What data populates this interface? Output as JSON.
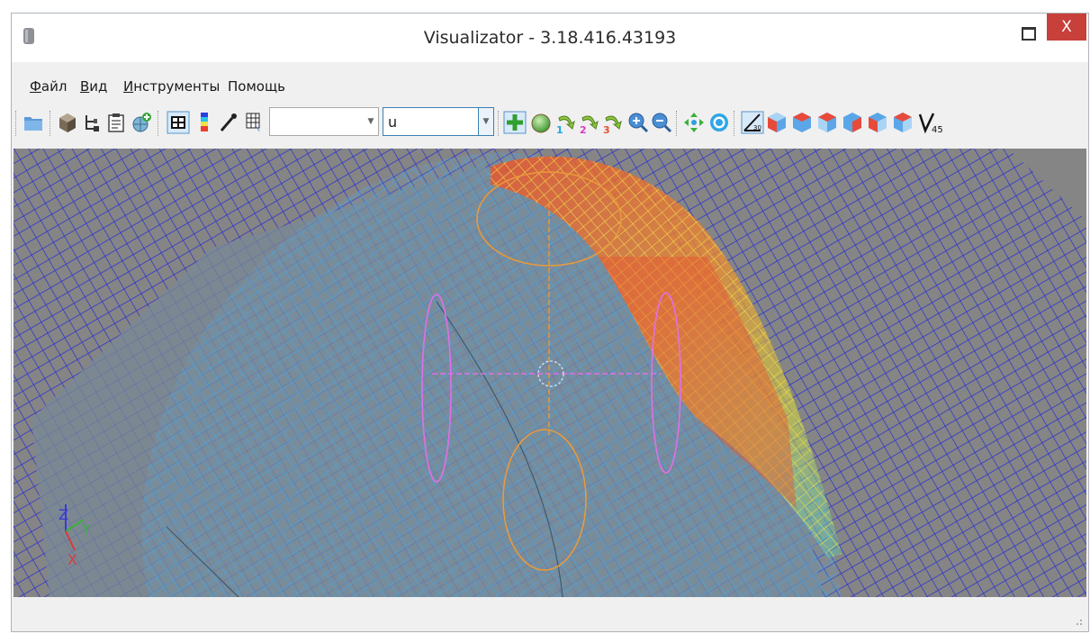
{
  "window": {
    "title": "Visualizator - 3.18.416.43193",
    "close_label": "X"
  },
  "menu": [
    {
      "key": "Ф",
      "rest": "айл"
    },
    {
      "key": "В",
      "rest": "ид"
    },
    {
      "key": "И",
      "rest": "нструменты"
    },
    {
      "key": "",
      "rest": "Помощь"
    }
  ],
  "toolbar": {
    "combo1_value": "",
    "combo2_value": "u",
    "axis_labels": [
      "1",
      "2",
      "3"
    ],
    "angle_label_30": "30",
    "angle_label_45": "45",
    "icons": [
      "open-folder-icon",
      "cube-icon",
      "tree-icon",
      "clipboard-icon",
      "globe-add-icon",
      "grid-icon",
      "color-scale-icon",
      "eyedropper-icon",
      "grid-select-icon",
      "crosshair-icon",
      "sphere-icon",
      "rotate-x-icon",
      "rotate-y-icon",
      "rotate-z-icon",
      "zoom-in-icon",
      "zoom-out-icon",
      "fit-view-icon",
      "target-icon",
      "angle-30-icon",
      "view-cube-front-icon",
      "view-cube-back-icon",
      "view-cube-left-icon",
      "view-cube-right-icon",
      "view-cube-top-icon",
      "view-cube-iso-icon",
      "angle-45-icon"
    ]
  },
  "viewport": {
    "axes": [
      "Z",
      "Y",
      "X"
    ]
  },
  "colors": {
    "close_button": "#c7403a",
    "grid_blue": "#2a2fd0",
    "mesh_blue": "#3aa6e8",
    "heat_red": "#e8542e",
    "heat_yellow": "#f2e04a",
    "background_gray": "#858585"
  }
}
